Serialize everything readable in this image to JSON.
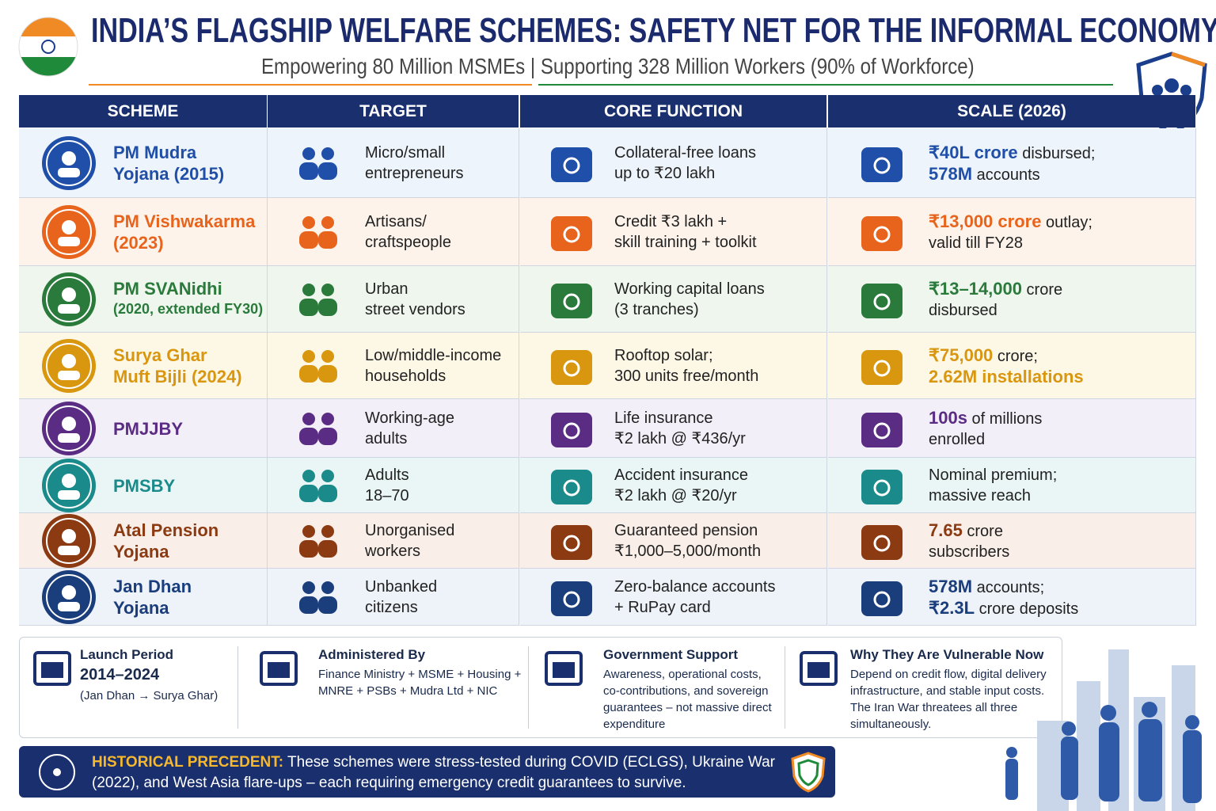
{
  "header": {
    "title": "INDIA’S FLAGSHIP WELFARE SCHEMES: SAFETY NET FOR THE INFORMAL ECONOMY",
    "subtitle": "Empowering 80 Million MSMEs | Supporting 328 Million Workers (90% of Workforce)"
  },
  "table": {
    "columns": [
      "SCHEME",
      "TARGET",
      "CORE FUNCTION",
      "SCALE (2026)"
    ],
    "rows": [
      {
        "color": "#1f4fa8",
        "bg": "#eef4fb",
        "scheme": [
          "PM Mudra",
          "Yojana (2015)"
        ],
        "target": [
          "Micro/small",
          "entrepreneurs"
        ],
        "core": [
          "Collateral-free loans",
          "up to ₹20 lakh"
        ],
        "scale": [
          [
            {
              "text": "₹40L crore",
              "strong": true
            },
            {
              "text": " disbursed;"
            }
          ],
          [
            {
              "text": "578M",
              "strong": true
            },
            {
              "text": " accounts"
            }
          ]
        ]
      },
      {
        "color": "#e8641c",
        "bg": "#fdf3ea",
        "scheme": [
          "PM Vishwakarma",
          "(2023)"
        ],
        "target": [
          "Artisans/",
          "craftspeople"
        ],
        "core": [
          "Credit ₹3 lakh +",
          "skill training + toolkit"
        ],
        "scale": [
          [
            {
              "text": "₹13,000 crore",
              "strong": true
            },
            {
              "text": " outlay;"
            }
          ],
          [
            {
              "text": "valid till FY28"
            }
          ]
        ]
      },
      {
        "color": "#2a7a3b",
        "bg": "#eef6ee",
        "scheme": [
          "PM SVANidhi"
        ],
        "scheme_note": "(2020, extended FY30)",
        "target": [
          "Urban",
          "street vendors"
        ],
        "core": [
          "Working capital loans",
          "(3 tranches)"
        ],
        "scale": [
          [
            {
              "text": "₹13–14,000",
              "strong": true
            },
            {
              "text": " crore"
            }
          ],
          [
            {
              "text": "disbursed"
            }
          ]
        ]
      },
      {
        "color": "#d9960f",
        "bg": "#fdf7e6",
        "scheme": [
          "Surya Ghar",
          "Muft Bijli (2024)"
        ],
        "target": [
          "Low/middle-income",
          "households"
        ],
        "core": [
          "Rooftop solar;",
          "300 units free/month"
        ],
        "scale": [
          [
            {
              "text": "₹75,000",
              "strong": true
            },
            {
              "text": " crore;"
            }
          ],
          [
            {
              "text": "2.62M installations",
              "strong": true
            }
          ]
        ]
      },
      {
        "color": "#5b2c83",
        "bg": "#f3eff8",
        "scheme": [
          "PMJJBY"
        ],
        "target": [
          "Working-age",
          "adults"
        ],
        "core": [
          "Life insurance",
          "₹2 lakh @ ₹436/yr"
        ],
        "scale": [
          [
            {
              "text": "100s",
              "strong": true
            },
            {
              "text": " of millions"
            }
          ],
          [
            {
              "text": "enrolled"
            }
          ]
        ]
      },
      {
        "color": "#1a8a8a",
        "bg": "#eaf6f6",
        "scheme": [
          "PMSBY"
        ],
        "target": [
          "Adults",
          "18–70"
        ],
        "core": [
          "Accident insurance",
          "₹2 lakh @ ₹20/yr"
        ],
        "scale": [
          [
            {
              "text": "Nominal premium;"
            }
          ],
          [
            {
              "text": "massive reach"
            }
          ]
        ]
      },
      {
        "color": "#8b3a12",
        "bg": "#f9efe8",
        "scheme": [
          "Atal Pension",
          "Yojana"
        ],
        "target": [
          "Unorganised",
          "workers"
        ],
        "core": [
          "Guaranteed pension",
          "₹1,000–5,000/month"
        ],
        "scale": [
          [
            {
              "text": "7.65",
              "strong": true
            },
            {
              "text": " crore"
            }
          ],
          [
            {
              "text": "subscribers"
            }
          ]
        ]
      },
      {
        "color": "#1a3d7c",
        "bg": "#eef2f9",
        "scheme": [
          "Jan Dhan",
          "Yojana"
        ],
        "target": [
          "Unbanked",
          "citizens"
        ],
        "core": [
          "Zero-balance accounts",
          "+ RuPay card"
        ],
        "scale": [
          [
            {
              "text": "578M",
              "strong": true
            },
            {
              "text": " accounts;"
            }
          ],
          [
            {
              "text": "₹2.3L",
              "strong": true
            },
            {
              "text": " crore deposits"
            }
          ]
        ]
      }
    ]
  },
  "footer": [
    {
      "title": "Launch Period",
      "highlight": "2014–2024",
      "text": [
        "(Jan Dhan → Surya Ghar)"
      ]
    },
    {
      "title": "Administered By",
      "text": [
        "Finance Ministry + MSME + Housing +",
        "MNRE + PSBs + Mudra Ltd + NIC"
      ]
    },
    {
      "title": "Government Support",
      "text": [
        "Awareness, operational costs,",
        "co-contributions, and sovereign",
        "guarantees – not massive direct",
        "expenditure"
      ]
    },
    {
      "title": "Why They Are Vulnerable Now",
      "text": [
        "Depend on credit flow, digital delivery",
        "infrastructure, and stable input costs.",
        "The Iran War threatees all three",
        "simultaneously."
      ]
    }
  ],
  "banner": {
    "label": "HISTORICAL PRECEDENT:",
    "text": "These schemes were stress-tested during COVID (ECLGS), Ukraine War (2022), and West Asia flare-ups – each requiring emergency credit guarantees to survive."
  }
}
